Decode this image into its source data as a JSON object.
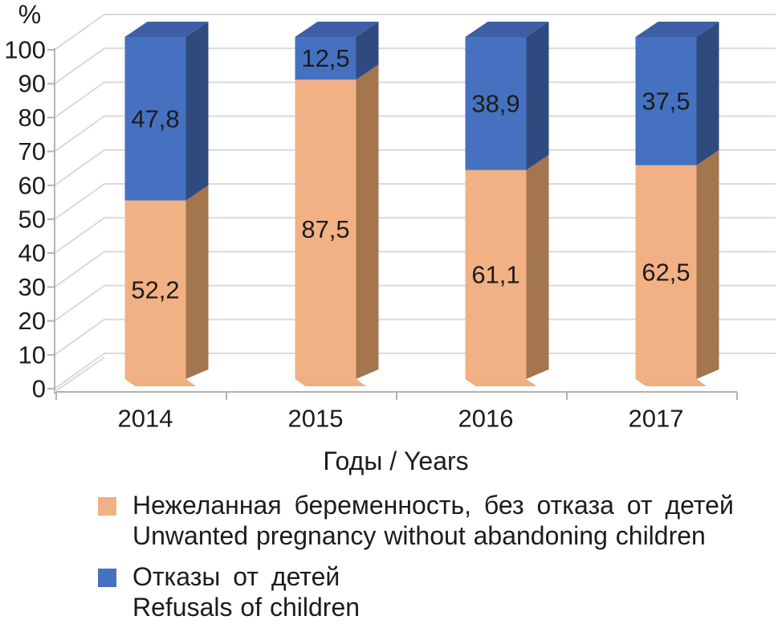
{
  "chart_data": {
    "type": "bar",
    "variant": "3d-stacked-column",
    "title": "",
    "ylabel": "%",
    "xlabel": "Годы / Years",
    "ylim": [
      0,
      100
    ],
    "ytick_step": 10,
    "yticks": [
      0,
      10,
      20,
      30,
      40,
      50,
      60,
      70,
      80,
      90,
      100
    ],
    "grid": true,
    "legend_position": "bottom",
    "categories": [
      "2014",
      "2015",
      "2016",
      "2017"
    ],
    "series": [
      {
        "name_ru": "Нежеланная беременность, без отказа от детей",
        "name_en": "Unwanted pregnancy without abandoning children",
        "color": "#F2B184",
        "side_color": "#A3764E",
        "bottom_color": "#EFAF80",
        "label_color": "#1c1c1c",
        "values": [
          52.2,
          87.5,
          61.1,
          62.5
        ],
        "labels": [
          "52,2",
          "87,5",
          "61,1",
          "62,5"
        ]
      },
      {
        "name_ru": "Отказы от детей",
        "name_en": "Refusals of children",
        "color": "#4571C0",
        "side_color": "#2F4A7E",
        "top_color": "#3E5FA3",
        "label_color": "#FFFFFF",
        "values": [
          47.8,
          12.5,
          38.9,
          37.5
        ],
        "labels": [
          "47,8",
          "12,5",
          "38,9",
          "37,5"
        ]
      }
    ]
  },
  "axis": {
    "percent_label": "%",
    "x_title": "Годы / Years"
  },
  "legend": {
    "items": [
      {
        "color": "#F2B184",
        "label_ru": "Нежеланная беременность, без отказа от детей",
        "label_en": "Unwanted pregnancy without abandoning children"
      },
      {
        "color": "#4571C0",
        "label_ru": "Отказы от детей",
        "label_en": "Refusals of children"
      }
    ]
  }
}
